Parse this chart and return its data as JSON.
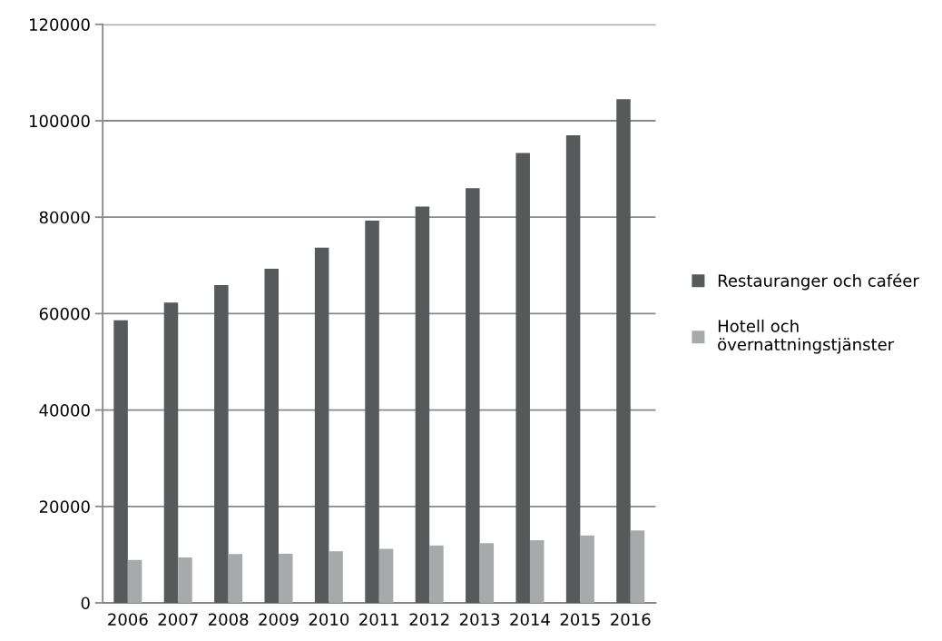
{
  "chart_data": {
    "type": "bar",
    "categories": [
      "2006",
      "2007",
      "2008",
      "2009",
      "2010",
      "2011",
      "2012",
      "2013",
      "2014",
      "2015",
      "2016"
    ],
    "series": [
      {
        "name": "Restauranger och caféer",
        "color": "#565a5a",
        "values": [
          58600,
          62300,
          65900,
          69300,
          73700,
          79300,
          82200,
          86000,
          93300,
          97000,
          104500
        ]
      },
      {
        "name": "Hotell och\növernattningstjänster",
        "color": "#a7aaaa",
        "values": [
          8900,
          9400,
          10100,
          10200,
          10700,
          11200,
          11900,
          12400,
          13000,
          14000,
          15000
        ]
      }
    ],
    "ylim": [
      0,
      120000
    ],
    "yticks": [
      0,
      20000,
      40000,
      60000,
      80000,
      100000,
      120000
    ],
    "grid": "y",
    "legend": "right"
  }
}
